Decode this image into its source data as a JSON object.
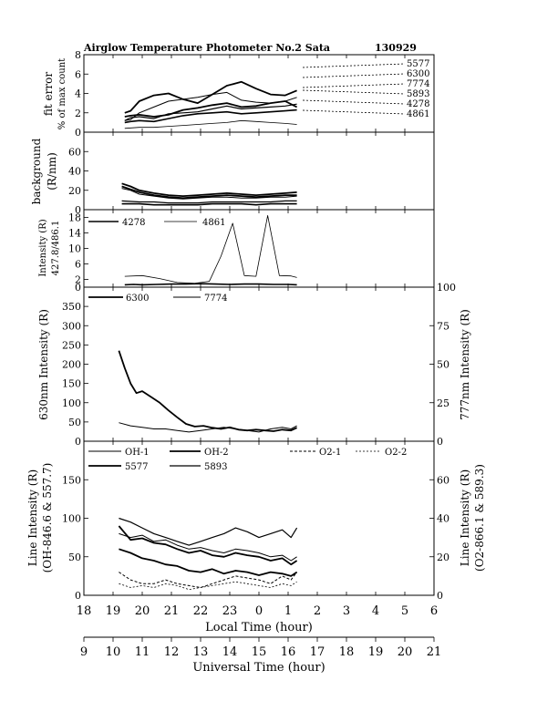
{
  "header": {
    "title": "Airglow Temperature Photometer No.2  Sata",
    "date": "130929"
  },
  "axes": {
    "local_time_label": "Local Time (hour)",
    "local_time_ticks": [
      "18",
      "19",
      "20",
      "21",
      "22",
      "23",
      "0",
      "1",
      "2",
      "3",
      "4",
      "5",
      "6"
    ],
    "universal_time_label": "Universal Time (hour)",
    "universal_time_ticks": [
      "9",
      "10",
      "11",
      "12",
      "13",
      "14",
      "15",
      "16",
      "17",
      "18",
      "19",
      "20",
      "21"
    ]
  },
  "colors": {
    "ink": "#000000",
    "background": "#ffffff"
  },
  "chart_data": [
    {
      "type": "line",
      "panel": "fit-error",
      "ylabel": "fit error",
      "ylabel2": "% of max count",
      "ylim": [
        0,
        8
      ],
      "yticks": [
        "0",
        "2",
        "4",
        "6",
        "8"
      ],
      "legend": [
        "5577",
        "6300",
        "7774",
        "5893",
        "4278",
        "4861"
      ],
      "series": [
        {
          "name": "5577",
          "x": [
            19.4,
            19.6,
            19.9,
            20.4,
            20.9,
            21.4,
            21.9,
            22.4,
            22.9,
            23.4,
            23.9,
            24.4,
            24.9,
            25.3
          ],
          "y": [
            1.6,
            1.7,
            1.8,
            1.6,
            1.8,
            2.3,
            2.5,
            2.8,
            3.0,
            2.6,
            2.7,
            3.0,
            3.2,
            2.6
          ]
        },
        {
          "name": "6300",
          "x": [
            19.4,
            19.6,
            19.9,
            20.4,
            20.9,
            21.4,
            21.9,
            22.4,
            22.9,
            23.4,
            23.9,
            24.4,
            24.9,
            25.3
          ],
          "y": [
            2.0,
            2.2,
            3.2,
            3.8,
            4.0,
            3.4,
            3.0,
            3.9,
            4.8,
            5.2,
            4.5,
            3.9,
            3.8,
            4.3
          ]
        },
        {
          "name": "7774",
          "x": [
            19.4,
            19.6,
            19.9,
            20.4,
            20.9,
            21.4,
            21.9,
            22.4,
            22.9,
            23.4,
            23.9,
            24.4,
            24.9,
            25.3
          ],
          "y": [
            1.2,
            1.3,
            2.0,
            2.6,
            3.2,
            3.4,
            3.6,
            3.9,
            4.1,
            3.3,
            3.1,
            3.0,
            3.2,
            3.6
          ]
        },
        {
          "name": "5893",
          "x": [
            19.4,
            19.6,
            19.9,
            20.4,
            20.9,
            21.4,
            21.9,
            22.4,
            22.9,
            23.4,
            23.9,
            24.4,
            24.9,
            25.3
          ],
          "y": [
            1.2,
            1.5,
            1.6,
            1.4,
            1.9,
            2.0,
            2.1,
            2.4,
            2.7,
            2.4,
            2.5,
            2.6,
            2.7,
            2.9
          ]
        },
        {
          "name": "4278",
          "x": [
            19.4,
            19.6,
            19.9,
            20.4,
            20.9,
            21.4,
            21.9,
            22.4,
            22.9,
            23.4,
            23.9,
            24.4,
            24.9,
            25.3
          ],
          "y": [
            1.0,
            1.1,
            1.2,
            1.1,
            1.4,
            1.7,
            1.9,
            2.0,
            2.1,
            1.9,
            2.0,
            2.1,
            2.2,
            2.3
          ]
        },
        {
          "name": "4861",
          "x": [
            19.4,
            19.9,
            20.4,
            20.9,
            21.4,
            21.9,
            22.4,
            22.9,
            23.4,
            23.9,
            24.4,
            24.9,
            25.3
          ],
          "y": [
            0.4,
            0.5,
            0.5,
            0.6,
            0.7,
            0.8,
            0.9,
            1.0,
            1.2,
            1.1,
            1.0,
            0.9,
            0.8
          ]
        }
      ]
    },
    {
      "type": "line",
      "panel": "background",
      "ylabel": "background",
      "ylabel2": "(R/nm)",
      "ylim": [
        0,
        80
      ],
      "yticks": [
        "0",
        "20",
        "40",
        "60"
      ],
      "series": [
        {
          "name": "5577",
          "x": [
            19.3,
            19.6,
            19.9,
            20.4,
            20.9,
            21.4,
            21.9,
            22.4,
            22.9,
            23.4,
            23.9,
            24.4,
            24.9,
            25.3
          ],
          "y": [
            27,
            24,
            20,
            17,
            15,
            14,
            15,
            16,
            17,
            16,
            15,
            16,
            17,
            18
          ]
        },
        {
          "name": "6300",
          "x": [
            19.3,
            19.6,
            19.9,
            20.4,
            20.9,
            21.4,
            21.9,
            22.4,
            22.9,
            23.4,
            23.9,
            24.4,
            24.9,
            25.3
          ],
          "y": [
            24,
            21,
            18,
            15,
            13,
            12,
            13,
            14,
            15,
            14,
            13,
            14,
            15,
            15
          ]
        },
        {
          "name": "7774",
          "x": [
            19.3,
            19.6,
            19.9,
            20.4,
            20.9,
            21.4,
            21.9,
            22.4,
            22.9,
            23.4,
            23.9,
            24.4,
            24.9,
            25.3
          ],
          "y": [
            22,
            20,
            16,
            14,
            12,
            11,
            12,
            13,
            13,
            12,
            12,
            13,
            13,
            14
          ]
        },
        {
          "name": "5893",
          "x": [
            19.3,
            19.9,
            20.4,
            20.9,
            21.4,
            21.9,
            22.4,
            22.9,
            23.4,
            23.9,
            24.4,
            24.9,
            25.3
          ],
          "y": [
            9,
            8,
            8,
            7,
            7,
            7,
            8,
            8,
            8,
            8,
            8,
            9,
            9
          ]
        },
        {
          "name": "4278",
          "x": [
            19.3,
            19.9,
            20.4,
            20.9,
            21.4,
            21.9,
            22.4,
            22.9,
            23.4,
            23.9,
            24.4,
            24.9,
            25.3
          ],
          "y": [
            6,
            6,
            5,
            5,
            5,
            5,
            6,
            6,
            6,
            5,
            6,
            6,
            6
          ]
        }
      ]
    },
    {
      "type": "line",
      "panel": "intensity-427-486",
      "ylabel": "Intensity (R)",
      "ylabel2": "427.8/486.1",
      "ylim": [
        0,
        20
      ],
      "yticks": [
        "0",
        "2",
        "6",
        "10",
        "14",
        "18"
      ],
      "legend": [
        "4278",
        "4861"
      ],
      "series": [
        {
          "name": "4278",
          "x": [
            19.4,
            19.7,
            20.0,
            20.5,
            21.0,
            21.5,
            22.0,
            22.5,
            23.0,
            23.5,
            24.0,
            24.5,
            25.0,
            25.3
          ],
          "y": [
            0.6,
            0.7,
            0.6,
            0.7,
            0.8,
            0.8,
            0.9,
            0.8,
            0.7,
            0.8,
            0.8,
            0.7,
            0.7,
            0.6
          ]
        },
        {
          "name": "4861",
          "x": [
            19.4,
            20.0,
            20.6,
            21.2,
            21.8,
            22.3,
            22.7,
            23.1,
            23.5,
            23.9,
            24.3,
            24.7,
            25.1,
            25.3
          ],
          "y": [
            2.8,
            3.0,
            2.2,
            1.2,
            1.0,
            1.5,
            8.0,
            16.5,
            3.0,
            2.8,
            18.5,
            3.0,
            2.9,
            2.5
          ]
        }
      ]
    },
    {
      "type": "line",
      "panel": "630-777",
      "ylabel": "630nm Intensity (R)",
      "ylabel_right": "777nm Intensity (R)",
      "ylim": [
        0,
        400
      ],
      "ylim_right": [
        0,
        100
      ],
      "yticks": [
        "0",
        "50",
        "100",
        "150",
        "200",
        "250",
        "300",
        "350"
      ],
      "yticks_right": [
        "0",
        "25",
        "50",
        "75",
        "100"
      ],
      "legend": [
        "6300",
        "7774"
      ],
      "series": [
        {
          "name": "6300",
          "x": [
            19.2,
            19.4,
            19.6,
            19.8,
            20.0,
            20.3,
            20.6,
            20.9,
            21.2,
            21.5,
            21.8,
            22.1,
            22.4,
            22.7,
            23.0,
            23.3,
            23.6,
            23.9,
            24.2,
            24.5,
            24.8,
            25.1,
            25.3
          ],
          "y": [
            235,
            190,
            150,
            125,
            130,
            115,
            100,
            80,
            62,
            45,
            38,
            40,
            35,
            32,
            36,
            30,
            28,
            30,
            28,
            26,
            30,
            28,
            35
          ]
        },
        {
          "name": "7774",
          "x": [
            19.2,
            19.6,
            20.0,
            20.4,
            20.8,
            21.2,
            21.6,
            22.0,
            22.4,
            22.8,
            23.2,
            23.6,
            24.0,
            24.4,
            24.8,
            25.1,
            25.3
          ],
          "y": [
            12,
            10,
            9,
            8,
            8,
            7,
            6,
            7,
            8,
            9,
            8,
            7,
            6,
            8,
            9,
            8,
            10
          ]
        }
      ]
    },
    {
      "type": "line",
      "panel": "line-intensity",
      "ylabel": "Line Intensity (R)",
      "ylabel2": "(OH-846.6 & 557.7)",
      "ylabel_right": "Line Intensity (R)",
      "ylabel_right2": "(O2-866.1 & 589.3)",
      "ylim": [
        0,
        200
      ],
      "ylim_right": [
        0,
        80
      ],
      "yticks": [
        "0",
        "50",
        "100",
        "150"
      ],
      "yticks_right": [
        "0",
        "20",
        "40",
        "60"
      ],
      "legend": [
        "OH-1",
        "OH-2",
        "O2-1",
        "O2-2",
        "5577",
        "5893"
      ],
      "series": [
        {
          "name": "OH-1",
          "x": [
            19.2,
            19.6,
            20.0,
            20.4,
            20.8,
            21.2,
            21.6,
            22.0,
            22.4,
            22.8,
            23.2,
            23.6,
            24.0,
            24.4,
            24.8,
            25.1,
            25.3
          ],
          "y": [
            80,
            75,
            78,
            70,
            72,
            65,
            60,
            62,
            58,
            55,
            60,
            58,
            55,
            50,
            52,
            45,
            50
          ]
        },
        {
          "name": "OH-2",
          "x": [
            19.2,
            19.6,
            20.0,
            20.4,
            20.8,
            21.2,
            21.6,
            22.0,
            22.4,
            22.8,
            23.2,
            23.6,
            24.0,
            24.4,
            24.8,
            25.1,
            25.3
          ],
          "y": [
            90,
            72,
            74,
            68,
            66,
            60,
            55,
            58,
            52,
            50,
            55,
            52,
            50,
            45,
            48,
            40,
            45
          ]
        },
        {
          "name": "5577",
          "x": [
            19.2,
            19.6,
            20.0,
            20.4,
            20.8,
            21.2,
            21.6,
            22.0,
            22.4,
            22.8,
            23.2,
            23.6,
            24.0,
            24.4,
            24.8,
            25.1,
            25.3
          ],
          "y": [
            60,
            55,
            48,
            45,
            40,
            38,
            32,
            30,
            34,
            28,
            32,
            30,
            26,
            30,
            28,
            25,
            30
          ]
        },
        {
          "name": "5893",
          "x": [
            19.2,
            19.6,
            20.0,
            20.4,
            20.8,
            21.2,
            21.6,
            22.0,
            22.4,
            22.8,
            23.2,
            23.6,
            24.0,
            24.4,
            24.8,
            25.1,
            25.3
          ],
          "y": [
            40,
            38,
            35,
            32,
            30,
            28,
            26,
            28,
            30,
            32,
            35,
            33,
            30,
            32,
            34,
            30,
            35
          ]
        },
        {
          "name": "O2-1",
          "x": [
            19.2,
            19.6,
            20.0,
            20.4,
            20.8,
            21.2,
            21.6,
            22.0,
            22.4,
            22.8,
            23.2,
            23.6,
            24.0,
            24.4,
            24.8,
            25.1,
            25.3
          ],
          "y": [
            12,
            8,
            6,
            6,
            8,
            6,
            5,
            4,
            6,
            8,
            10,
            9,
            8,
            6,
            10,
            8,
            12
          ]
        },
        {
          "name": "O2-2",
          "x": [
            19.2,
            19.6,
            20.0,
            20.4,
            20.8,
            21.2,
            21.6,
            22.0,
            22.4,
            22.8,
            23.2,
            23.6,
            24.0,
            24.4,
            24.8,
            25.1,
            25.3
          ],
          "y": [
            6,
            4,
            5,
            4,
            6,
            5,
            3,
            4,
            5,
            6,
            7,
            6,
            5,
            4,
            6,
            5,
            7
          ]
        }
      ]
    }
  ]
}
